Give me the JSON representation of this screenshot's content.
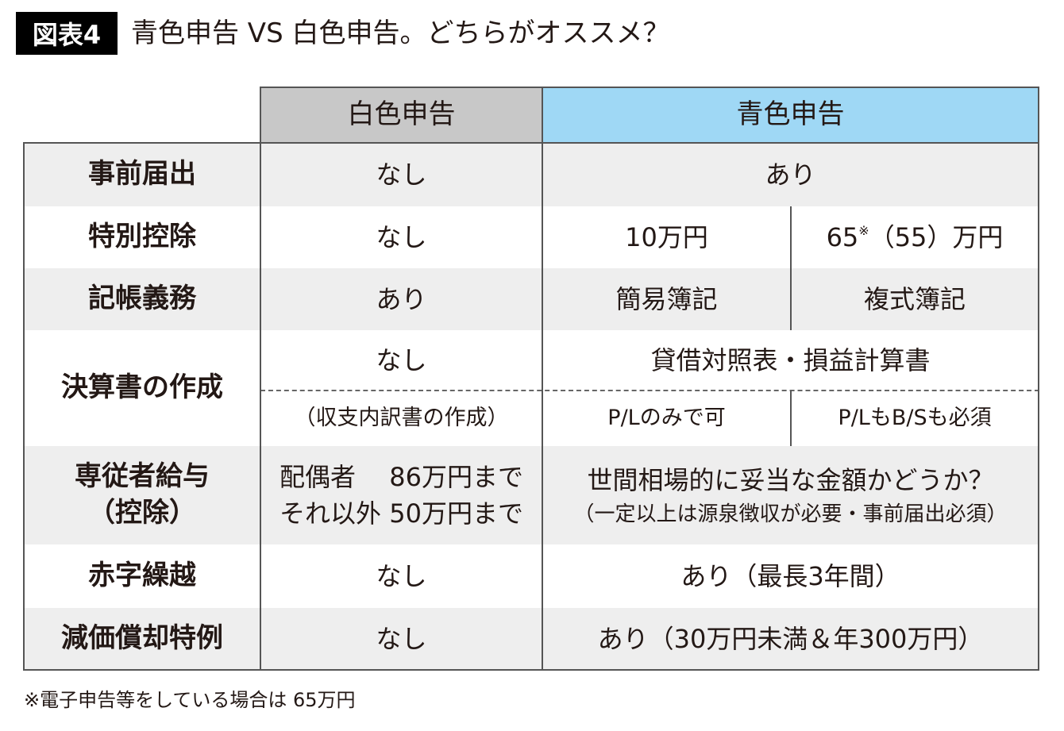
{
  "title": {
    "badge": "図表4",
    "text": "青色申告 VS 白色申告。どちらがオススメ？"
  },
  "colors": {
    "white_header": "#c8c8c8",
    "blue_header": "#9fd8f5",
    "row_alt": "#eeeeee",
    "badge_bg": "#000000"
  },
  "table": {
    "headers": {
      "white": "白色申告",
      "blue": "青色申告"
    },
    "rows": {
      "advance_notice": {
        "label": "事前届出",
        "white": "なし",
        "blue": "あり"
      },
      "special_deduction": {
        "label": "特別控除",
        "white": "なし",
        "blue_a": "10万円",
        "blue_b": "65",
        "blue_b_mark": "※",
        "blue_b_rest": "（55）万円"
      },
      "bookkeeping": {
        "label": "記帳義務",
        "white": "あり",
        "blue_a": "簡易簿記",
        "blue_b": "複式簿記"
      },
      "statements": {
        "label": "決算書の作成",
        "white": "なし",
        "blue": "貸借対照表・損益計算書",
        "white_sub": "（収支内訳書の作成）",
        "blue_a_sub": "P/Lのみで可",
        "blue_b_sub": "P/LもB/Sも必須"
      },
      "family_salary": {
        "label_line1": "専従者給与",
        "label_line2": "（控除）",
        "white_line1": "配偶者　 86万円まで",
        "white_line2": "それ以外 50万円まで",
        "blue_line1": "世間相場的に妥当な金額かどうか？",
        "blue_line2": "（一定以上は源泉徴収が必要・事前届出必須）"
      },
      "loss_carryforward": {
        "label": "赤字繰越",
        "white": "なし",
        "blue": "あり（最長3年間）"
      },
      "depreciation": {
        "label": "減価償却特例",
        "white": "なし",
        "blue": "あり（30万円未満＆年300万円）"
      }
    }
  },
  "footnote": "※電子申告等をしている場合は 65万円"
}
